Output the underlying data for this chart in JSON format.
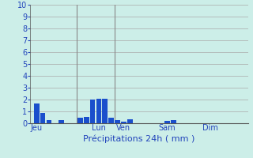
{
  "title": "",
  "xlabel": "Précipitations 24h ( mm )",
  "ylabel": "",
  "background_color": "#cceee8",
  "bar_color": "#1a4fcc",
  "grid_color": "#aaaaaa",
  "ylim": [
    0,
    10
  ],
  "yticks": [
    0,
    1,
    2,
    3,
    4,
    5,
    6,
    7,
    8,
    9,
    10
  ],
  "bar_positions": [
    0,
    1,
    2,
    4,
    7,
    8,
    9,
    10,
    11,
    12,
    13,
    14,
    15,
    21,
    22
  ],
  "bar_heights": [
    1.65,
    0.9,
    0.25,
    0.3,
    0.45,
    0.55,
    2.0,
    2.05,
    2.05,
    0.5,
    0.3,
    0.15,
    0.35,
    0.2,
    0.3
  ],
  "day_labels": [
    "Jeu",
    "Lun",
    "Ven",
    "Sam",
    "Dim"
  ],
  "day_positions": [
    0,
    10,
    14,
    21,
    28
  ],
  "total_bars": 35,
  "vline_positions": [
    7,
    13
  ],
  "bar_width": 0.85,
  "tick_fontsize": 7,
  "xlabel_fontsize": 8,
  "tick_color": "#2244bb",
  "xlabel_color": "#2244bb"
}
